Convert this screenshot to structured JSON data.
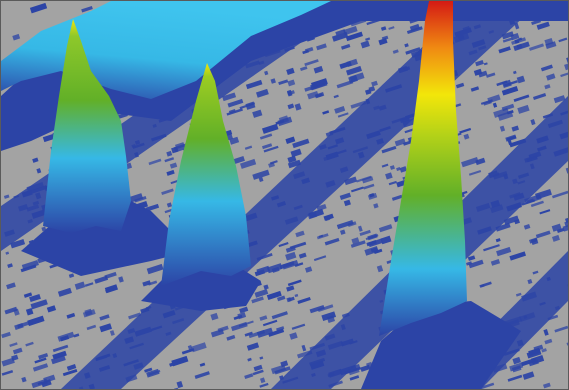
{
  "image": {
    "kind": "3d-surface-render",
    "description_free": true
  },
  "palette": {
    "floor_gray": "#a3a3a3",
    "noise_blue": "#2c44a6",
    "cyan": "#36b8e6",
    "green": "#62b028",
    "yellow": "#f2e60a",
    "orange": "#f08a12",
    "red": "#d41a14",
    "border": "#5a5a5a"
  }
}
